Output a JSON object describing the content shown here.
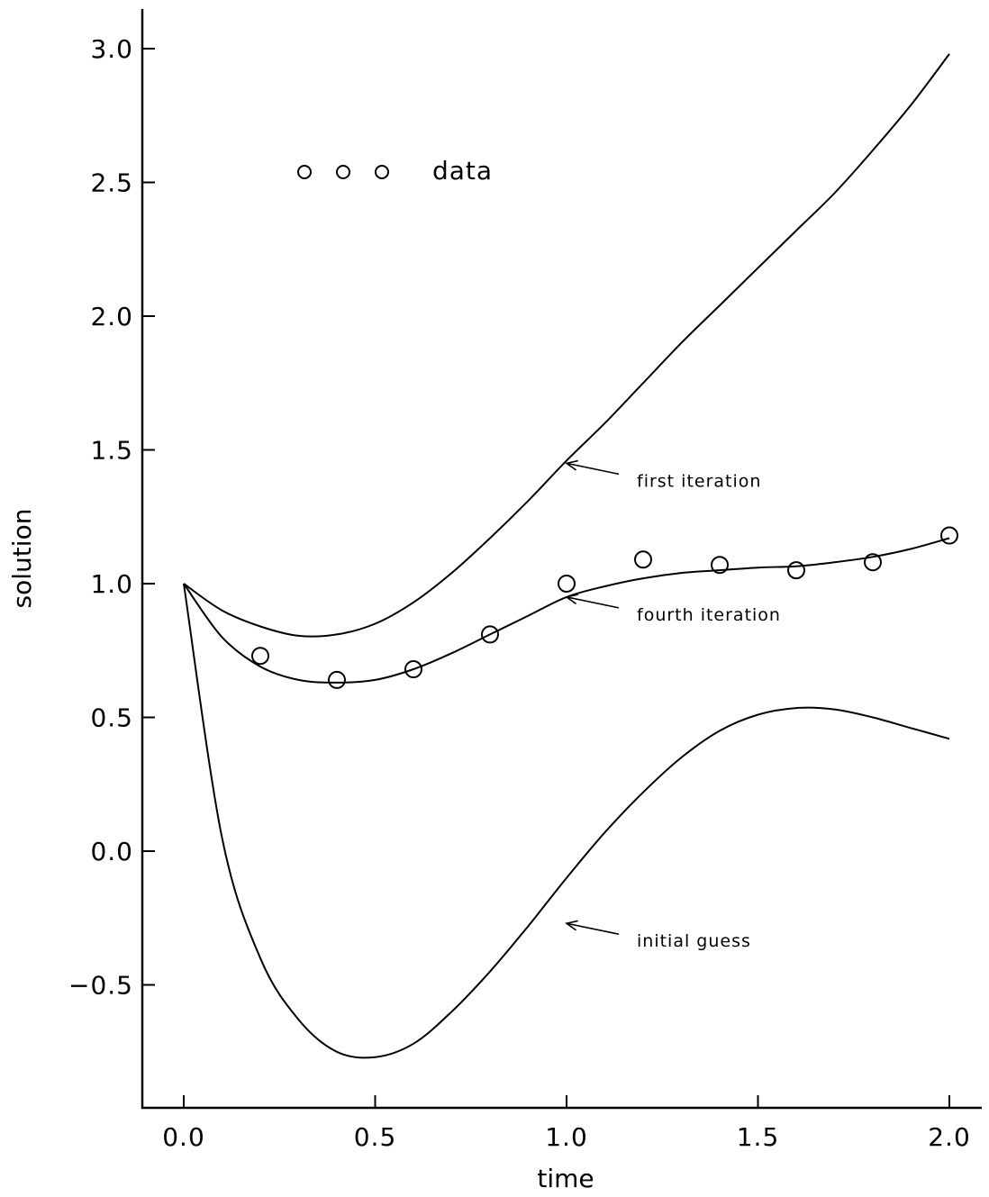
{
  "chart_data": {
    "type": "line",
    "xlabel": "time",
    "ylabel": "solution",
    "xlim": [
      -0.1,
      2.05
    ],
    "ylim": [
      -0.95,
      3.15
    ],
    "xticks": [
      0.0,
      0.5,
      1.0,
      1.5,
      2.0
    ],
    "xtick_labels": [
      "0.0",
      "0.5",
      "1.0",
      "1.5",
      "2.0"
    ],
    "yticks": [
      -0.5,
      0.0,
      0.5,
      1.0,
      1.5,
      2.0,
      2.5,
      3.0
    ],
    "ytick_labels": [
      "−0.5",
      "0.0",
      "0.5",
      "1.0",
      "1.5",
      "2.0",
      "2.5",
      "3.0"
    ],
    "grid": false,
    "series": [
      {
        "name": "first iteration",
        "x": [
          0.0,
          0.1,
          0.2,
          0.3,
          0.4,
          0.5,
          0.6,
          0.7,
          0.8,
          0.9,
          1.0,
          1.1,
          1.2,
          1.3,
          1.4,
          1.5,
          1.6,
          1.7,
          1.8,
          1.9,
          2.0
        ],
        "y": [
          1.0,
          0.9,
          0.84,
          0.805,
          0.81,
          0.85,
          0.93,
          1.04,
          1.17,
          1.31,
          1.46,
          1.6,
          1.75,
          1.9,
          2.04,
          2.18,
          2.32,
          2.46,
          2.62,
          2.79,
          2.98
        ]
      },
      {
        "name": "fourth iteration",
        "x": [
          0.0,
          0.1,
          0.2,
          0.3,
          0.4,
          0.5,
          0.6,
          0.7,
          0.8,
          0.9,
          1.0,
          1.1,
          1.2,
          1.3,
          1.4,
          1.5,
          1.6,
          1.7,
          1.8,
          1.9,
          2.0
        ],
        "y": [
          1.0,
          0.8,
          0.69,
          0.64,
          0.63,
          0.64,
          0.68,
          0.74,
          0.81,
          0.88,
          0.95,
          0.99,
          1.02,
          1.04,
          1.05,
          1.06,
          1.065,
          1.08,
          1.1,
          1.13,
          1.17
        ]
      },
      {
        "name": "initial guess",
        "x": [
          0.0,
          0.1,
          0.2,
          0.3,
          0.4,
          0.5,
          0.6,
          0.7,
          0.8,
          0.9,
          1.0,
          1.1,
          1.2,
          1.3,
          1.4,
          1.5,
          1.6,
          1.7,
          1.8,
          1.9,
          2.0
        ],
        "y": [
          1.0,
          0.05,
          -0.4,
          -0.63,
          -0.75,
          -0.77,
          -0.72,
          -0.6,
          -0.45,
          -0.28,
          -0.1,
          0.07,
          0.22,
          0.35,
          0.45,
          0.51,
          0.535,
          0.53,
          0.5,
          0.46,
          0.42
        ]
      },
      {
        "name": "data",
        "style": "markers",
        "x": [
          0.2,
          0.4,
          0.6,
          0.8,
          1.0,
          1.2,
          1.4,
          1.6,
          1.8,
          2.0
        ],
        "y": [
          0.73,
          0.64,
          0.68,
          0.81,
          1.0,
          1.09,
          1.07,
          1.05,
          1.08,
          1.18
        ]
      }
    ],
    "annotations": [
      {
        "text": "first iteration",
        "arrow_to": [
          1.0,
          1.45
        ]
      },
      {
        "text": "fourth iteration",
        "arrow_to": [
          1.0,
          0.95
        ]
      },
      {
        "text": "initial guess",
        "arrow_to": [
          1.0,
          -0.27
        ]
      }
    ],
    "legend": {
      "text": "data",
      "placement": "top-left"
    }
  }
}
